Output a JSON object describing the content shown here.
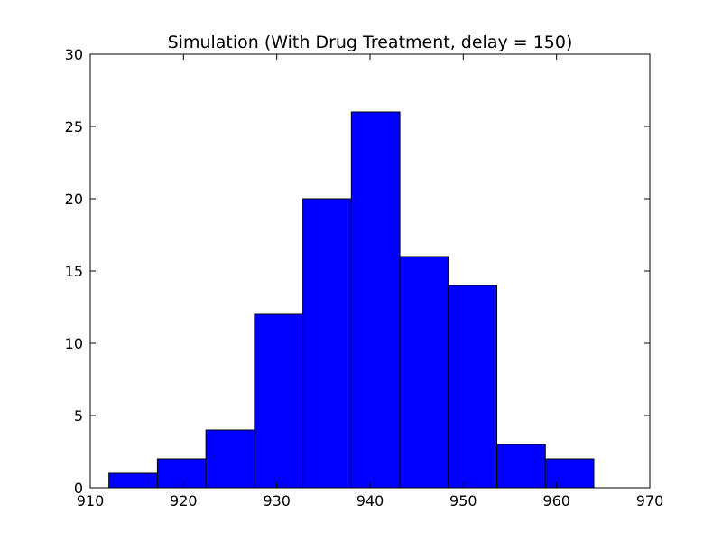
{
  "chart_data": {
    "type": "bar",
    "title": "Simulation (With Drug Treatment, delay = 150)",
    "xlabel": "",
    "ylabel": "",
    "xlim": [
      910,
      970
    ],
    "ylim": [
      0,
      30
    ],
    "xticks": [
      910,
      920,
      930,
      940,
      950,
      960,
      970
    ],
    "yticks": [
      0,
      5,
      10,
      15,
      20,
      25,
      30
    ],
    "bins": [
      {
        "start": 912.0,
        "end": 917.2,
        "count": 1
      },
      {
        "start": 917.2,
        "end": 922.4,
        "count": 2
      },
      {
        "start": 922.4,
        "end": 927.6,
        "count": 4
      },
      {
        "start": 927.6,
        "end": 932.8,
        "count": 12
      },
      {
        "start": 932.8,
        "end": 938.0,
        "count": 20
      },
      {
        "start": 938.0,
        "end": 943.2,
        "count": 26
      },
      {
        "start": 943.2,
        "end": 948.4,
        "count": 16
      },
      {
        "start": 948.4,
        "end": 953.6,
        "count": 14
      },
      {
        "start": 953.6,
        "end": 958.8,
        "count": 3
      },
      {
        "start": 958.8,
        "end": 964.0,
        "count": 2
      }
    ],
    "grid": false,
    "colors": {
      "bar": "#0000ff",
      "edge": "#000000"
    }
  }
}
